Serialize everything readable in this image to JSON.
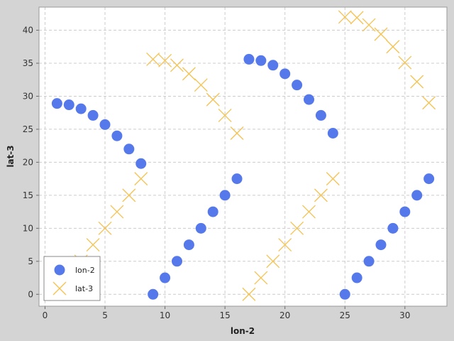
{
  "chart_data": {
    "type": "scatter",
    "title": "",
    "xlabel": "lon-2",
    "ylabel": "lat-3",
    "xlim": [
      -0.5,
      33.5
    ],
    "ylim": [
      -1.8,
      43.5
    ],
    "x_ticks": [
      0,
      5,
      10,
      15,
      20,
      25,
      30
    ],
    "y_ticks": [
      0,
      5,
      10,
      15,
      20,
      25,
      30,
      35,
      40
    ],
    "grid": true,
    "legend_position": "bottom-left",
    "series": [
      {
        "name": "lon-2",
        "marker": "circle",
        "color": "#5578eb",
        "x": [
          1,
          2,
          3,
          4,
          5,
          6,
          7,
          8,
          9,
          10,
          11,
          12,
          13,
          14,
          15,
          16,
          17,
          18,
          19,
          20,
          21,
          22,
          23,
          24,
          25,
          26,
          27,
          28,
          29,
          30,
          31,
          32
        ],
        "y": [
          28.9,
          28.7,
          28.1,
          27.1,
          25.7,
          24.0,
          22.0,
          19.8,
          0,
          2.5,
          5,
          7.5,
          10,
          12.5,
          15,
          17.5,
          35.6,
          35.4,
          34.7,
          33.4,
          31.7,
          29.5,
          27.1,
          24.4,
          0,
          2.5,
          5,
          7.5,
          10,
          12.5,
          15,
          17.5
        ]
      },
      {
        "name": "lat-3",
        "marker": "x",
        "color": "#f5c24f",
        "x": [
          1,
          2,
          3,
          4,
          5,
          6,
          7,
          8,
          9,
          10,
          11,
          12,
          13,
          14,
          15,
          16,
          17,
          18,
          19,
          20,
          21,
          22,
          23,
          24,
          25,
          26,
          27,
          28,
          29,
          30,
          31,
          32
        ],
        "y": [
          0,
          2.5,
          5,
          7.5,
          10,
          12.5,
          15,
          17.5,
          35.6,
          35.4,
          34.7,
          33.4,
          31.7,
          29.5,
          27.1,
          24.4,
          0,
          2.5,
          5,
          7.5,
          10,
          12.5,
          15,
          17.5,
          42.0,
          41.9,
          40.8,
          39.4,
          37.5,
          35.1,
          32.2,
          29.0
        ]
      }
    ]
  }
}
